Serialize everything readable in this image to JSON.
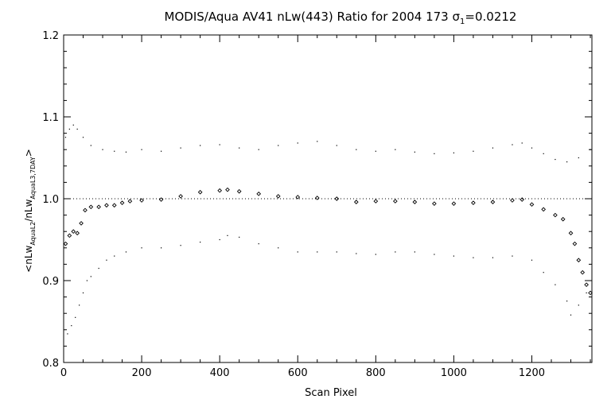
{
  "chart_data": {
    "type": "scatter",
    "title_main": "MODIS/Aqua AV41 nLw(443) Ratio for 2004 173 ",
    "title_sigma": "σ",
    "title_sigma_sub": "1",
    "title_value": "=0.0212",
    "xlabel": "Scan Pixel",
    "ylabel": {
      "prefix": "<nLw",
      "sub1": "AquaL2",
      "mid": "/nLw",
      "sub2": "AquaL3,7DAY",
      "suffix": ">"
    },
    "xlim": [
      0,
      1354
    ],
    "ylim": [
      0.8,
      1.2
    ],
    "xticks": [
      0,
      200,
      400,
      600,
      800,
      1000,
      1200
    ],
    "xtick_labels": [
      "0",
      "200",
      "400",
      "600",
      "800",
      "1000",
      "1200"
    ],
    "yticks": [
      0.8,
      0.9,
      1.0,
      1.1,
      1.2
    ],
    "ytick_labels": [
      "0.8",
      "0.9",
      "1.0",
      "1.1",
      "1.2"
    ],
    "reference_line": 1.0,
    "series": [
      {
        "role": "mean ratio",
        "marker": "diamond",
        "color": "#000000",
        "x": [
          5,
          15,
          25,
          35,
          45,
          55,
          70,
          90,
          110,
          130,
          150,
          170,
          200,
          250,
          300,
          350,
          400,
          420,
          450,
          500,
          550,
          600,
          650,
          700,
          750,
          800,
          850,
          900,
          950,
          1000,
          1050,
          1100,
          1150,
          1175,
          1200,
          1230,
          1260,
          1280,
          1300,
          1310,
          1320,
          1330,
          1340,
          1350
        ],
        "y": [
          0.945,
          0.955,
          0.96,
          0.958,
          0.97,
          0.986,
          0.99,
          0.99,
          0.992,
          0.992,
          0.995,
          0.997,
          0.998,
          0.999,
          1.003,
          1.008,
          1.01,
          1.011,
          1.009,
          1.006,
          1.003,
          1.002,
          1.001,
          1.0,
          0.996,
          0.997,
          0.997,
          0.996,
          0.994,
          0.994,
          0.995,
          0.996,
          0.998,
          0.999,
          0.993,
          0.987,
          0.98,
          0.975,
          0.958,
          0.945,
          0.925,
          0.91,
          0.895,
          0.885
        ]
      },
      {
        "role": "upper bound",
        "marker": "dot",
        "color": "#000000",
        "x": [
          5,
          15,
          25,
          35,
          50,
          70,
          100,
          130,
          160,
          200,
          250,
          300,
          350,
          400,
          450,
          500,
          550,
          600,
          650,
          700,
          750,
          800,
          850,
          900,
          950,
          1000,
          1050,
          1100,
          1150,
          1175,
          1200,
          1230,
          1260,
          1290,
          1320,
          1350
        ],
        "y": [
          1.075,
          1.085,
          1.09,
          1.085,
          1.075,
          1.065,
          1.06,
          1.058,
          1.057,
          1.06,
          1.058,
          1.062,
          1.065,
          1.066,
          1.062,
          1.06,
          1.065,
          1.068,
          1.07,
          1.065,
          1.06,
          1.058,
          1.06,
          1.057,
          1.055,
          1.056,
          1.058,
          1.062,
          1.066,
          1.068,
          1.062,
          1.055,
          1.048,
          1.045,
          1.05,
          1.06
        ]
      },
      {
        "role": "lower bound",
        "marker": "dot",
        "color": "#000000",
        "x": [
          10,
          20,
          30,
          40,
          50,
          60,
          70,
          90,
          110,
          130,
          160,
          200,
          250,
          300,
          350,
          400,
          420,
          450,
          500,
          550,
          600,
          650,
          700,
          750,
          800,
          850,
          900,
          950,
          1000,
          1050,
          1100,
          1150,
          1200,
          1230,
          1260,
          1290,
          1300,
          1320,
          1340
        ],
        "y": [
          0.835,
          0.845,
          0.855,
          0.87,
          0.885,
          0.9,
          0.905,
          0.915,
          0.925,
          0.93,
          0.935,
          0.94,
          0.94,
          0.943,
          0.947,
          0.95,
          0.955,
          0.953,
          0.945,
          0.94,
          0.935,
          0.935,
          0.935,
          0.933,
          0.932,
          0.935,
          0.935,
          0.932,
          0.93,
          0.928,
          0.928,
          0.93,
          0.925,
          0.91,
          0.895,
          0.875,
          0.858,
          0.87,
          0.885
        ]
      }
    ]
  }
}
